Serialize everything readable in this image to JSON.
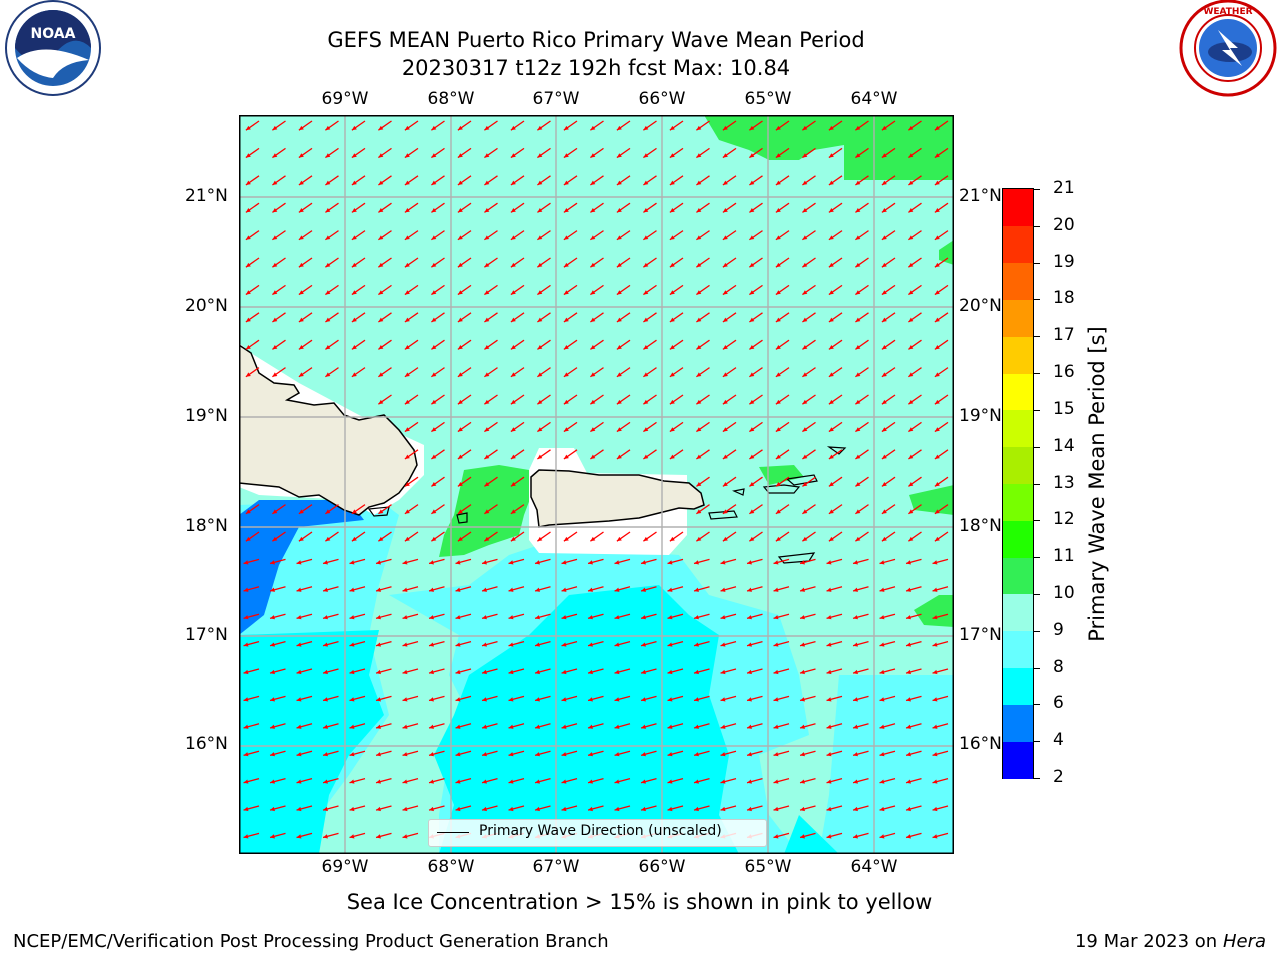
{
  "header": {
    "title_line1": "GEFS MEAN Puerto Rico Primary Wave Mean Period",
    "title_line2": "20230317 t12z 192h fcst   Max: 10.84"
  },
  "logos": {
    "noaa_left": {
      "text": "NOAA",
      "ring_text": "NATIONAL OCEANIC AND ATMOSPHERIC ADMINISTRATION · U.S. DEPARTMENT OF COMMERCE",
      "icon": "noaa-logo"
    },
    "nws_right": {
      "ring_text": "NATIONAL WEATHER SERVICE",
      "icon": "nws-logo"
    }
  },
  "map": {
    "lon_ticks": [
      "69°W",
      "68°W",
      "67°W",
      "66°W",
      "65°W",
      "64°W"
    ],
    "lat_ticks": [
      "21°N",
      "20°N",
      "19°N",
      "18°N",
      "17°N",
      "16°N"
    ],
    "lon_values": [
      -69,
      -68,
      -67,
      -66,
      -65,
      -64
    ],
    "lat_values": [
      21,
      20,
      19,
      18,
      17,
      16
    ],
    "lon_range": [
      -70.0,
      -63.25
    ],
    "lat_range": [
      15.0,
      21.75
    ],
    "grid": true,
    "legend": {
      "label": "Primary Wave Direction (unscaled)",
      "placement": "bottom-center"
    },
    "arrow_color": "#ff0000",
    "land_color": "#efeddd",
    "coast_color": "#000000"
  },
  "colorbar": {
    "label": "Primary Wave Mean Period [s]",
    "ticks": [
      "2",
      "4",
      "6",
      "8",
      "9",
      "10",
      "11",
      "12",
      "13",
      "14",
      "15",
      "16",
      "17",
      "18",
      "19",
      "20",
      "21"
    ],
    "colors": [
      "#0000ff",
      "#0080ff",
      "#00ffff",
      "#66ffff",
      "#99ffe6",
      "#33ee55",
      "#22ff00",
      "#77ff00",
      "#aaee00",
      "#ccff00",
      "#ffff00",
      "#ffcc00",
      "#ff9900",
      "#ff6600",
      "#ff3300",
      "#ff0000"
    ]
  },
  "footer": {
    "ice_note": "Sea Ice Concentration > 15% is shown in pink to yellow",
    "branch": "NCEP/EMC/Verification Post Processing Product Generation Branch",
    "date": "19 Mar 2023 on",
    "machine": "Hera"
  }
}
